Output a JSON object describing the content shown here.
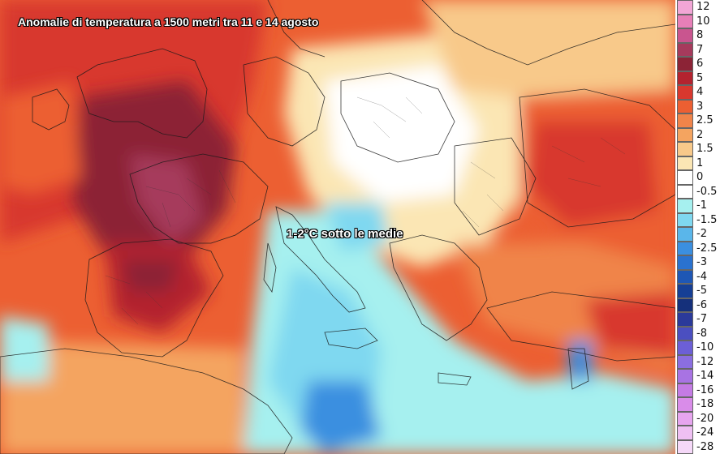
{
  "map": {
    "title": "Anomalie di temperatura a 1500 metri tra 11 e 14 agosto",
    "annotation": "1-2°C sotto le medie"
  },
  "legend": {
    "items": [
      {
        "label": "12",
        "color": "#f2a6d6"
      },
      {
        "label": "10",
        "color": "#e77fb8"
      },
      {
        "label": "8",
        "color": "#c9558f"
      },
      {
        "label": "7",
        "color": "#a63a5c"
      },
      {
        "label": "6",
        "color": "#8c2336"
      },
      {
        "label": "5",
        "color": "#b4232f"
      },
      {
        "label": "4",
        "color": "#d8382e"
      },
      {
        "label": "3",
        "color": "#ec5f32"
      },
      {
        "label": "2.5",
        "color": "#f0844a"
      },
      {
        "label": "2",
        "color": "#f4a460"
      },
      {
        "label": "1.5",
        "color": "#f8c98a"
      },
      {
        "label": "1",
        "color": "#fbe6b4"
      },
      {
        "label": "0",
        "color": "#ffffff"
      },
      {
        "label": "-0.5",
        "color": "#ffffff"
      },
      {
        "label": "-1",
        "color": "#a6f0ef"
      },
      {
        "label": "-1.5",
        "color": "#7fd8f0"
      },
      {
        "label": "-2",
        "color": "#5ab6ea"
      },
      {
        "label": "-2.5",
        "color": "#3b8fe0"
      },
      {
        "label": "-3",
        "color": "#2a72cf"
      },
      {
        "label": "-4",
        "color": "#1e57b5"
      },
      {
        "label": "-5",
        "color": "#163f95"
      },
      {
        "label": "-6",
        "color": "#15307b"
      },
      {
        "label": "-7",
        "color": "#2b3a9a"
      },
      {
        "label": "-8",
        "color": "#4b4fc0"
      },
      {
        "label": "-10",
        "color": "#6c5fd6"
      },
      {
        "label": "-12",
        "color": "#8b6ee0"
      },
      {
        "label": "-14",
        "color": "#a873e3"
      },
      {
        "label": "-16",
        "color": "#c47be4"
      },
      {
        "label": "-18",
        "color": "#d98ce9"
      },
      {
        "label": "-20",
        "color": "#e7a5ef"
      },
      {
        "label": "-24",
        "color": "#efc0f3"
      },
      {
        "label": "-28",
        "color": "#f5d8f8"
      }
    ]
  }
}
